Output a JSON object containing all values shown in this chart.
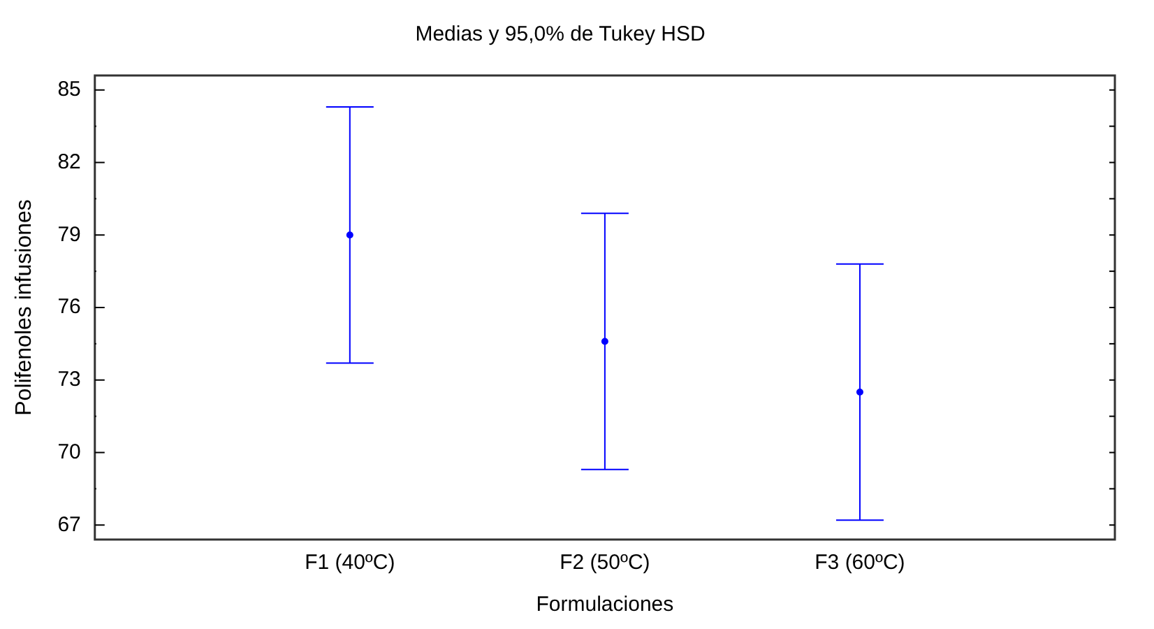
{
  "chart_data": {
    "type": "scatter",
    "title": "Medias y 95,0% de Tukey HSD",
    "xlabel": "Formulaciones",
    "ylabel": "Polifenoles infusiones",
    "categories": [
      "F1 (40ºC)",
      "F2 (50ºC)",
      "F3 (60ºC)"
    ],
    "series": [
      {
        "color": "#0000ff",
        "values": [
          79.0,
          74.6,
          72.5
        ],
        "errors": [
          5.3,
          5.3,
          5.3
        ]
      }
    ],
    "ylim": [
      66.4,
      85.6
    ],
    "yticks": [
      67,
      {
        "value": 68.5,
        "label": null
      },
      70,
      {
        "value": 71.5,
        "label": null
      },
      73,
      {
        "value": 74.5,
        "label": null
      },
      76,
      {
        "value": 77.5,
        "label": null
      },
      79,
      {
        "value": 80.5,
        "label": null
      },
      82,
      {
        "value": 83.5,
        "label": null
      },
      85
    ],
    "grid": false,
    "legend": false,
    "marker": "circle"
  }
}
